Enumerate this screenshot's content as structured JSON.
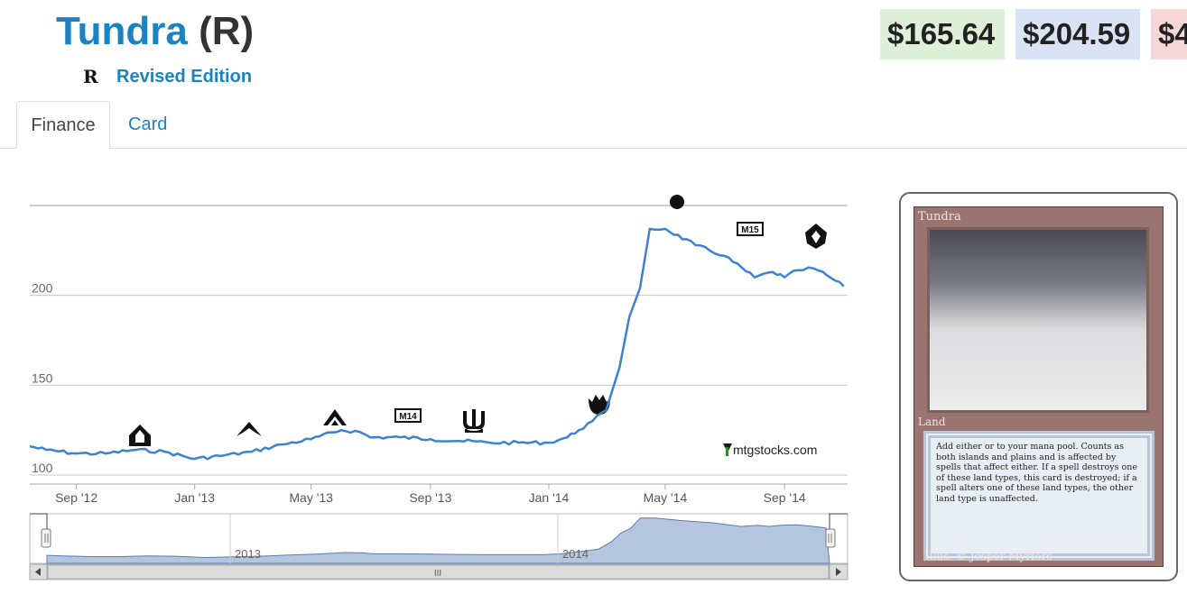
{
  "header": {
    "card_name": "Tundra",
    "rarity": "(R)",
    "set_icon_glyph": "R",
    "set_name": "Revised Edition"
  },
  "prices": [
    "$165.64",
    "$204.59",
    "$4"
  ],
  "tabs": [
    {
      "label": "Finance",
      "active": true
    },
    {
      "label": "Card",
      "active": false
    }
  ],
  "chart_data": {
    "type": "line",
    "series": [
      {
        "color": "#3c82d0",
        "points": [
          [
            "2012-07-15",
            116
          ],
          [
            "2012-08-01",
            114
          ],
          [
            "2012-09-01",
            112
          ],
          [
            "2012-10-01",
            112
          ],
          [
            "2012-11-01",
            114
          ],
          [
            "2012-12-01",
            113
          ],
          [
            "2013-01-01",
            109
          ],
          [
            "2013-02-01",
            111
          ],
          [
            "2013-03-01",
            113
          ],
          [
            "2013-04-01",
            117
          ],
          [
            "2013-05-01",
            120
          ],
          [
            "2013-06-01",
            125
          ],
          [
            "2013-06-20",
            124
          ],
          [
            "2013-07-01",
            121
          ],
          [
            "2013-08-01",
            121
          ],
          [
            "2013-09-01",
            120
          ],
          [
            "2013-10-01",
            119
          ],
          [
            "2013-11-01",
            118
          ],
          [
            "2013-12-01",
            118
          ],
          [
            "2014-01-01",
            118
          ],
          [
            "2014-01-20",
            121
          ],
          [
            "2014-02-01",
            125
          ],
          [
            "2014-02-15",
            130
          ],
          [
            "2014-03-01",
            136
          ],
          [
            "2014-03-15",
            160
          ],
          [
            "2014-03-25",
            188
          ],
          [
            "2014-04-05",
            204
          ],
          [
            "2014-04-15",
            237
          ],
          [
            "2014-05-01",
            237
          ],
          [
            "2014-06-01",
            228
          ],
          [
            "2014-07-01",
            222
          ],
          [
            "2014-08-01",
            210
          ],
          [
            "2014-08-20",
            213
          ],
          [
            "2014-09-01",
            210
          ],
          [
            "2014-09-15",
            214
          ],
          [
            "2014-10-01",
            215
          ],
          [
            "2014-10-15",
            211
          ],
          [
            "2014-11-01",
            205
          ]
        ]
      }
    ],
    "xticks": [
      "Sep '12",
      "Jan '13",
      "May '13",
      "Sep '13",
      "Jan '14",
      "May '14",
      "Sep '14"
    ],
    "yticks": [
      100,
      150,
      200
    ],
    "ylim": [
      95,
      250
    ],
    "grid": true,
    "credit": "mtgstocks.com",
    "navigator": {
      "labels": [
        "2013",
        "2014"
      ],
      "scroll_handle": "III"
    }
  },
  "card_image": {
    "title": "Tundra",
    "type_line": "Land",
    "rules_text": "Add either or to your mana pool. Counts as both islands and plains and is affected by spells that affect either. If a spell destroys one of these land types, this card is destroyed; if a spell alters one of these land types, the other land type is unaffected.",
    "illustrator": "Illus. © Jesper Myrfors"
  }
}
